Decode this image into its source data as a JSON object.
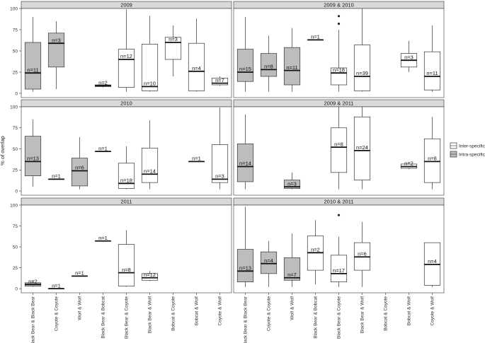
{
  "chart_data": {
    "type": "boxplot",
    "ylabel": "% of overlap",
    "y_ticks": [
      0,
      25,
      50,
      75,
      100
    ],
    "ylim": [
      -5,
      100
    ],
    "categories": [
      "Black Bear & Black Bear",
      "Coyote & Coyote",
      "Wolf & Wolf",
      "Black Bear & Bobcat",
      "Black Bear & Coyote",
      "Black Bear & Wolf",
      "Bobcat & Coyote",
      "Bobcat & Wolf",
      "Coyote & Wolf"
    ],
    "legend": {
      "placement": "right",
      "entries": [
        {
          "key": "inter",
          "label": "Inter-specific",
          "color": "#ffffff"
        },
        {
          "key": "intra",
          "label": "Intra-specific",
          "color": "#bdbdbd"
        }
      ]
    },
    "panels": [
      {
        "title": "2009",
        "boxes": [
          {
            "cat": 0,
            "type": "intra",
            "lo": 2,
            "q1": 5,
            "med": 24,
            "q3": 60,
            "hi": 90,
            "label": "n=11"
          },
          {
            "cat": 1,
            "type": "intra",
            "lo": 5,
            "q1": 31,
            "med": 59,
            "q3": 71,
            "hi": 85,
            "label": "n=3"
          },
          {
            "cat": 3,
            "type": "intra",
            "lo": 7,
            "q1": 8,
            "med": 9,
            "q3": 10,
            "hi": 11,
            "label": "n=2"
          },
          {
            "cat": 4,
            "type": "inter",
            "lo": 2,
            "q1": 7,
            "med": 40,
            "q3": 52,
            "hi": 99,
            "label": "n=12"
          },
          {
            "cat": 5,
            "type": "inter",
            "lo": 2,
            "q1": 3,
            "med": 8,
            "q3": 58,
            "hi": 91,
            "label": "n=10"
          },
          {
            "cat": 6,
            "type": "inter",
            "lo": 20,
            "q1": 40,
            "med": 60,
            "q3": 66,
            "hi": 80,
            "label": "n=3"
          },
          {
            "cat": 7,
            "type": "inter",
            "lo": 2,
            "q1": 3,
            "med": 26,
            "q3": 59,
            "hi": 88,
            "label": "n=4"
          },
          {
            "cat": 8,
            "type": "inter",
            "lo": 9,
            "q1": 10,
            "med": 12,
            "q3": 18,
            "hi": 20,
            "label": "n=7"
          }
        ]
      },
      {
        "title": "2009 & 2010",
        "boxes": [
          {
            "cat": 0,
            "type": "intra",
            "lo": 2,
            "q1": 14,
            "med": 25,
            "q3": 52,
            "hi": 90,
            "label": "n=15"
          },
          {
            "cat": 1,
            "type": "intra",
            "lo": 2,
            "q1": 20,
            "med": 28,
            "q3": 47,
            "hi": 68,
            "label": "n=8"
          },
          {
            "cat": 2,
            "type": "intra",
            "lo": 2,
            "q1": 10,
            "med": 27,
            "q3": 54,
            "hi": 77,
            "label": "n=11"
          },
          {
            "cat": 3,
            "type": "inter",
            "lo": 63,
            "q1": 63,
            "med": 63,
            "q3": 63,
            "hi": 63,
            "label": "n=1"
          },
          {
            "cat": 4,
            "type": "inter",
            "lo": 2,
            "q1": 10,
            "med": 24,
            "q3": 30,
            "hi": 75,
            "label": "n=18",
            "outliers": [
              82,
              91
            ]
          },
          {
            "cat": 5,
            "type": "inter",
            "lo": 2,
            "q1": 3,
            "med": 20,
            "q3": 57,
            "hi": 100,
            "label": "n=39"
          },
          {
            "cat": 7,
            "type": "inter",
            "lo": 25,
            "q1": 31,
            "med": 39,
            "q3": 47,
            "hi": 62,
            "label": "n=3"
          },
          {
            "cat": 8,
            "type": "inter",
            "lo": 2,
            "q1": 4,
            "med": 20,
            "q3": 49,
            "hi": 80,
            "label": "n=11"
          }
        ]
      },
      {
        "title": "2010",
        "boxes": [
          {
            "cat": 0,
            "type": "intra",
            "lo": 5,
            "q1": 18,
            "med": 35,
            "q3": 65,
            "hi": 85,
            "label": "n=13"
          },
          {
            "cat": 1,
            "type": "intra",
            "lo": 14,
            "q1": 14,
            "med": 14,
            "q3": 14,
            "hi": 14,
            "label": "n=1"
          },
          {
            "cat": 2,
            "type": "intra",
            "lo": 2,
            "q1": 6,
            "med": 24,
            "q3": 39,
            "hi": 64,
            "label": "n=6"
          },
          {
            "cat": 3,
            "type": "inter",
            "lo": 47,
            "q1": 47,
            "med": 47,
            "q3": 47,
            "hi": 47,
            "label": "n=1"
          },
          {
            "cat": 4,
            "type": "inter",
            "lo": 2,
            "q1": 3,
            "med": 9,
            "q3": 33,
            "hi": 53,
            "label": "n=18"
          },
          {
            "cat": 5,
            "type": "inter",
            "lo": 2,
            "q1": 10,
            "med": 20,
            "q3": 51,
            "hi": 84,
            "label": "n=14"
          },
          {
            "cat": 7,
            "type": "inter",
            "lo": 35,
            "q1": 35,
            "med": 35,
            "q3": 35,
            "hi": 35,
            "label": "n=1"
          },
          {
            "cat": 8,
            "type": "inter",
            "lo": 2,
            "q1": 10,
            "med": 14,
            "q3": 55,
            "hi": 99,
            "label": "n=3"
          }
        ]
      },
      {
        "title": "2009 & 2011",
        "boxes": [
          {
            "cat": 0,
            "type": "intra",
            "lo": 2,
            "q1": 11,
            "med": 29,
            "q3": 56,
            "hi": 91,
            "label": "n=14"
          },
          {
            "cat": 2,
            "type": "intra",
            "lo": 2,
            "q1": 3,
            "med": 5,
            "q3": 13,
            "hi": 22,
            "label": "n=3"
          },
          {
            "cat": 4,
            "type": "inter",
            "lo": 2,
            "q1": 22,
            "med": 52,
            "q3": 75,
            "hi": 100,
            "label": "n=8"
          },
          {
            "cat": 5,
            "type": "inter",
            "lo": 2,
            "q1": 13,
            "med": 48,
            "q3": 88,
            "hi": 100,
            "label": "n=24"
          },
          {
            "cat": 7,
            "type": "inter",
            "lo": 26,
            "q1": 27,
            "med": 29,
            "q3": 32,
            "hi": 34,
            "label": "n=2"
          },
          {
            "cat": 8,
            "type": "inter",
            "lo": 2,
            "q1": 10,
            "med": 35,
            "q3": 62,
            "hi": 88,
            "label": "n=8"
          }
        ]
      },
      {
        "title": "2011",
        "boxes": [
          {
            "cat": 0,
            "type": "intra",
            "lo": 2,
            "q1": 3,
            "med": 5,
            "q3": 7,
            "hi": 9,
            "label": "n=2"
          },
          {
            "cat": 1,
            "type": "intra",
            "lo": 0,
            "q1": 0,
            "med": 0,
            "q3": 0,
            "hi": 0,
            "label": "n=1"
          },
          {
            "cat": 2,
            "type": "inter",
            "lo": 15,
            "q1": 15,
            "med": 15,
            "q3": 15,
            "hi": 15,
            "label": "n=1"
          },
          {
            "cat": 3,
            "type": "inter",
            "lo": 57,
            "q1": 57,
            "med": 57,
            "q3": 57,
            "hi": 57,
            "label": "n=1"
          },
          {
            "cat": 4,
            "type": "inter",
            "lo": 2,
            "q1": 3,
            "med": 19,
            "q3": 53,
            "hi": 70,
            "label": "n=8"
          },
          {
            "cat": 5,
            "type": "inter",
            "lo": 9,
            "q1": 10,
            "med": 13,
            "q3": 18,
            "hi": 21,
            "label": "n=12"
          }
        ]
      },
      {
        "title": "2010 & 2011",
        "boxes": [
          {
            "cat": 0,
            "type": "intra",
            "lo": 2,
            "q1": 8,
            "med": 21,
            "q3": 47,
            "hi": 98,
            "label": "n=13"
          },
          {
            "cat": 1,
            "type": "intra",
            "lo": 2,
            "q1": 18,
            "med": 30,
            "q3": 44,
            "hi": 57,
            "label": "n=4"
          },
          {
            "cat": 2,
            "type": "intra",
            "lo": 2,
            "q1": 10,
            "med": 13,
            "q3": 37,
            "hi": 66,
            "label": "n=7"
          },
          {
            "cat": 3,
            "type": "inter",
            "lo": 5,
            "q1": 22,
            "med": 43,
            "q3": 63,
            "hi": 82,
            "label": "n=2"
          },
          {
            "cat": 4,
            "type": "inter",
            "lo": 2,
            "q1": 8,
            "med": 18,
            "q3": 40,
            "hi": 62,
            "label": "n=17",
            "outliers": [
              88
            ]
          },
          {
            "cat": 5,
            "type": "inter",
            "lo": 2,
            "q1": 22,
            "med": 38,
            "q3": 55,
            "hi": 80,
            "label": "n=6"
          },
          {
            "cat": 8,
            "type": "inter",
            "lo": 2,
            "q1": 4,
            "med": 29,
            "q3": 55,
            "hi": 55,
            "label": "n=4"
          }
        ]
      }
    ]
  }
}
